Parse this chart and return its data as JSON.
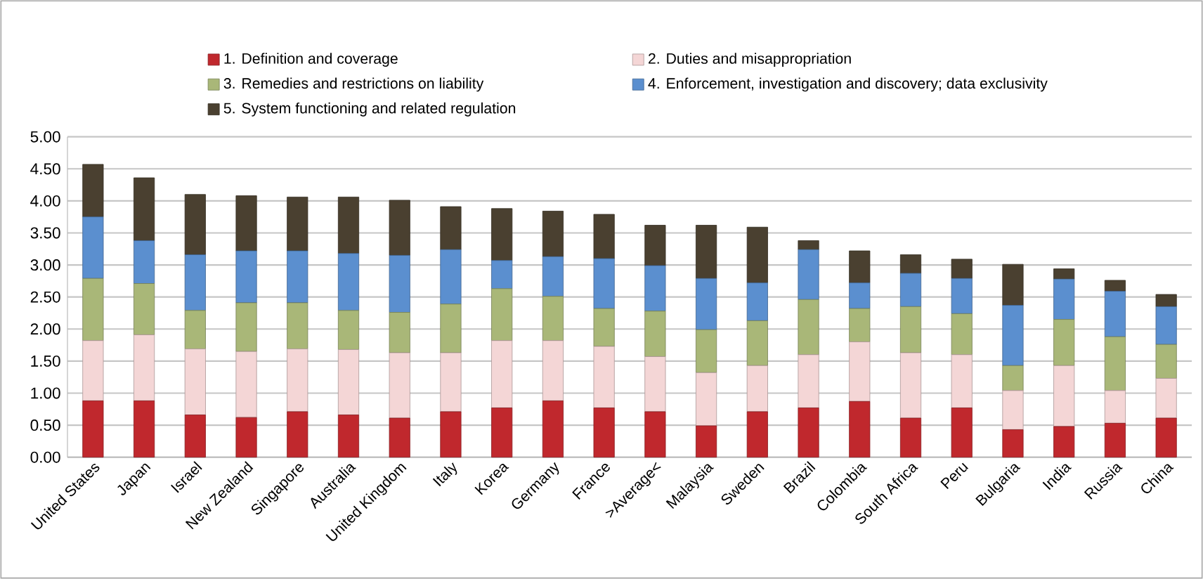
{
  "chart_data": {
    "type": "bar",
    "stacked": true,
    "categories": [
      "United States",
      "Japan",
      "Israel",
      "New Zealand",
      "Singapore",
      "Australia",
      "United Kingdom",
      "Italy",
      "Korea",
      "Germany",
      "France",
      ">Average<",
      "Malaysia",
      "Sweden",
      "Brazil",
      "Colombia",
      "South Africa",
      "Peru",
      "Bulgaria",
      "India",
      "Russia",
      "China"
    ],
    "series": [
      {
        "name": "1. Definition and coverage",
        "color": "#c0282d",
        "values": [
          0.88,
          0.88,
          0.66,
          0.62,
          0.71,
          0.66,
          0.61,
          0.71,
          0.77,
          0.88,
          0.77,
          0.71,
          0.49,
          0.71,
          0.77,
          0.87,
          0.61,
          0.77,
          0.43,
          0.48,
          0.53,
          0.61
        ]
      },
      {
        "name": "2. Duties and misappropriation",
        "color": "#f4d6d6",
        "values": [
          0.94,
          1.03,
          1.03,
          1.03,
          0.98,
          1.02,
          1.02,
          0.92,
          1.05,
          0.94,
          0.96,
          0.86,
          0.83,
          0.72,
          0.83,
          0.93,
          1.02,
          0.83,
          0.61,
          0.95,
          0.51,
          0.62
        ]
      },
      {
        "name": "3. Remedies and restrictions on liability",
        "color": "#a9b778",
        "values": [
          0.97,
          0.8,
          0.6,
          0.76,
          0.72,
          0.61,
          0.63,
          0.76,
          0.81,
          0.69,
          0.59,
          0.71,
          0.67,
          0.7,
          0.86,
          0.52,
          0.72,
          0.64,
          0.39,
          0.72,
          0.84,
          0.53
        ]
      },
      {
        "name": "4. Enforcement, investigation and discovery; data exclusivity",
        "color": "#5b8fcf",
        "values": [
          0.96,
          0.67,
          0.87,
          0.81,
          0.81,
          0.89,
          0.89,
          0.85,
          0.44,
          0.62,
          0.78,
          0.71,
          0.8,
          0.59,
          0.78,
          0.4,
          0.52,
          0.55,
          0.94,
          0.63,
          0.71,
          0.59
        ]
      },
      {
        "name": "5. System functioning and related regulation",
        "color": "#4a4030",
        "values": [
          0.82,
          0.98,
          0.94,
          0.86,
          0.84,
          0.88,
          0.86,
          0.67,
          0.81,
          0.71,
          0.69,
          0.63,
          0.83,
          0.87,
          0.14,
          0.5,
          0.29,
          0.3,
          0.64,
          0.16,
          0.17,
          0.19
        ]
      }
    ],
    "ylim": [
      0,
      5
    ],
    "yticks": [
      {
        "value": 0,
        "label": "0.00"
      },
      {
        "value": 0.5,
        "label": "0.50"
      },
      {
        "value": 1,
        "label": "1.00"
      },
      {
        "value": 1.5,
        "label": "1.50"
      },
      {
        "value": 2,
        "label": "2.00"
      },
      {
        "value": 2.5,
        "label": "2.50"
      },
      {
        "value": 3,
        "label": "3.00"
      },
      {
        "value": 3.5,
        "label": "3.50"
      },
      {
        "value": 4,
        "label": "4.00"
      },
      {
        "value": 4.5,
        "label": "4.50"
      },
      {
        "value": 5,
        "label": "5.00"
      }
    ],
    "grid": "y",
    "legend": "top"
  }
}
